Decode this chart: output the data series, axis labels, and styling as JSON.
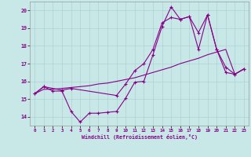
{
  "bg_color": "#c8e8e8",
  "line_color": "#880088",
  "grid_color": "#aacccc",
  "xlim": [
    -0.5,
    23.5
  ],
  "ylim": [
    13.5,
    20.5
  ],
  "x_ticks": [
    0,
    1,
    2,
    3,
    4,
    5,
    6,
    7,
    8,
    9,
    10,
    11,
    12,
    13,
    14,
    15,
    16,
    17,
    18,
    19,
    20,
    21,
    22,
    23
  ],
  "y_ticks": [
    14,
    15,
    16,
    17,
    18,
    19,
    20
  ],
  "xlabel": "Windchill (Refroidissement éolien,°C)",
  "series1_x": [
    0,
    1,
    2,
    3,
    4,
    5,
    6,
    7,
    8,
    9,
    10,
    11,
    12,
    13,
    14,
    15,
    16,
    17,
    18,
    19,
    20,
    21,
    22,
    23
  ],
  "series1_y": [
    15.3,
    15.55,
    15.55,
    15.6,
    15.65,
    15.7,
    15.75,
    15.85,
    15.9,
    16.0,
    16.1,
    16.2,
    16.35,
    16.5,
    16.65,
    16.8,
    17.0,
    17.15,
    17.3,
    17.5,
    17.65,
    17.8,
    16.4,
    16.7
  ],
  "series2_x": [
    0,
    1,
    2,
    3,
    4,
    5,
    6,
    7,
    8,
    9,
    10,
    11,
    12,
    13,
    14,
    15,
    16,
    17,
    18,
    19,
    20,
    21,
    22,
    23
  ],
  "series2_y": [
    15.3,
    15.7,
    15.45,
    15.45,
    14.3,
    13.7,
    14.2,
    14.2,
    14.25,
    14.3,
    15.05,
    15.95,
    16.0,
    17.5,
    19.1,
    20.2,
    19.5,
    19.65,
    17.8,
    19.75,
    17.8,
    16.8,
    16.4,
    16.7
  ],
  "series3_x": [
    0,
    1,
    3,
    4,
    9,
    10,
    11,
    12,
    13,
    14,
    15,
    16,
    17,
    18,
    19,
    20,
    21,
    22,
    23
  ],
  "series3_y": [
    15.3,
    15.7,
    15.5,
    15.6,
    15.2,
    15.85,
    16.6,
    17.0,
    17.8,
    19.3,
    19.6,
    19.5,
    19.65,
    18.75,
    19.75,
    17.8,
    16.5,
    16.4,
    16.7
  ]
}
